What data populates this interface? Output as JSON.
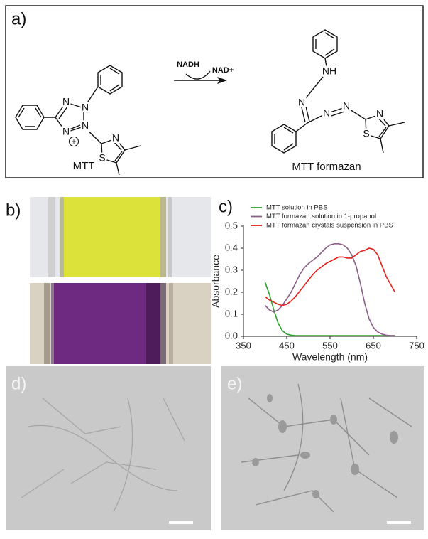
{
  "panels": {
    "a": {
      "label": "a)",
      "reagents": [
        "NADH",
        "NAD+"
      ],
      "mtt": {
        "name": "MTT",
        "atoms": [
          "N",
          "N",
          "N",
          "N",
          "N",
          "S",
          "+"
        ]
      },
      "formazan": {
        "name": "MTT formazan",
        "atoms": [
          "NH",
          "N",
          "N",
          "N",
          "N",
          "S"
        ]
      }
    },
    "b": {
      "label": "b)"
    },
    "c": {
      "label": "c)"
    },
    "d": {
      "label": "d)"
    },
    "e": {
      "label": "e)"
    }
  },
  "chart_data": {
    "type": "line",
    "x_label": "Wavelength (nm)",
    "y_label": "Absorbance",
    "x": [
      400,
      410,
      420,
      430,
      440,
      450,
      460,
      470,
      480,
      490,
      500,
      510,
      520,
      530,
      540,
      550,
      560,
      570,
      580,
      590,
      600,
      610,
      620,
      630,
      640,
      650,
      660,
      670,
      680,
      690,
      700
    ],
    "series": [
      {
        "name": "MTT solution in PBS",
        "color": "#2ca02c",
        "values": [
          0.245,
          0.19,
          0.12,
          0.06,
          0.025,
          0.01,
          0.005,
          0.003,
          0.003,
          0.003,
          0.003,
          0.003,
          0.003,
          0.003,
          0.003,
          0.003,
          0.003,
          0.003,
          0.003,
          0.003,
          0.003,
          0.003,
          0.003,
          0.003,
          0.003,
          0.003,
          0.003,
          0.003,
          0.003,
          0.003,
          0.003
        ]
      },
      {
        "name": "MTT formazan solution in 1-propanol",
        "color": "#8a5f86",
        "values": [
          0.14,
          0.12,
          0.11,
          0.12,
          0.14,
          0.17,
          0.2,
          0.24,
          0.28,
          0.31,
          0.33,
          0.345,
          0.36,
          0.38,
          0.4,
          0.415,
          0.42,
          0.42,
          0.415,
          0.4,
          0.37,
          0.32,
          0.24,
          0.15,
          0.08,
          0.04,
          0.02,
          0.01,
          0.005,
          0.003,
          0.003
        ]
      },
      {
        "name": "MTT formazan crystals suspension in PBS",
        "color": "#e3211c",
        "values": [
          0.18,
          0.165,
          0.155,
          0.145,
          0.14,
          0.145,
          0.16,
          0.18,
          0.205,
          0.23,
          0.255,
          0.28,
          0.3,
          0.315,
          0.33,
          0.34,
          0.35,
          0.36,
          0.36,
          0.355,
          0.355,
          0.37,
          0.385,
          0.39,
          0.4,
          0.395,
          0.37,
          0.32,
          0.27,
          0.235,
          0.2
        ]
      }
    ],
    "xlim": [
      350,
      750
    ],
    "xticks": [
      350,
      450,
      550,
      650,
      750
    ],
    "ylim": [
      0,
      0.5
    ],
    "yticks": [
      {
        "value": 0,
        "label": "0.0"
      },
      0.1,
      0.2,
      0.3,
      0.4,
      0.5
    ],
    "grid": false,
    "legend": "upper left"
  }
}
